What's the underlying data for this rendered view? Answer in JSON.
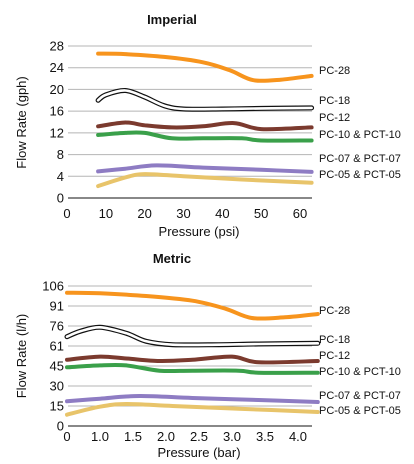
{
  "chart_data": [
    {
      "type": "line",
      "title": "Imperial",
      "xlabel": "Pressure (psi)",
      "ylabel": "Flow Rate (gph)",
      "xlim": [
        0,
        65
      ],
      "ylim": [
        0,
        28
      ],
      "xticks": [
        "0",
        "10",
        "20",
        "30",
        "40",
        "50",
        "60"
      ],
      "yticks": [
        "0",
        "4",
        "8",
        "12",
        "16",
        "20",
        "24",
        "28"
      ],
      "grid": "horizontal",
      "legend": "right",
      "series": [
        {
          "name": "PC-28",
          "color": "#f7941d",
          "style": "solid",
          "x": [
            8,
            15,
            25,
            35,
            42,
            48,
            55,
            63
          ],
          "y": [
            26.6,
            26.5,
            26.0,
            25.0,
            23.5,
            21.7,
            21.8,
            22.5
          ]
        },
        {
          "name": "PC-18",
          "color": "#111111",
          "style": "outline",
          "x": [
            8,
            10,
            15,
            20,
            25,
            30,
            40,
            50,
            63
          ],
          "y": [
            18.0,
            19.0,
            19.8,
            18.6,
            17.0,
            16.4,
            16.4,
            16.5,
            16.6
          ]
        },
        {
          "name": "PC-12",
          "color": "#7b3a2e",
          "style": "solid",
          "x": [
            8,
            15,
            20,
            27,
            35,
            43,
            50,
            63
          ],
          "y": [
            13.2,
            13.9,
            13.4,
            13.0,
            13.2,
            13.8,
            12.7,
            13.0
          ]
        },
        {
          "name": "PC-10 & PCT-10",
          "color": "#3aa04a",
          "style": "solid",
          "x": [
            8,
            15,
            20,
            27,
            35,
            45,
            50,
            63
          ],
          "y": [
            11.6,
            12.0,
            12.0,
            11.0,
            11.0,
            11.0,
            10.6,
            10.6
          ]
        },
        {
          "name": "PC-07 & PCT-07",
          "color": "#8e7cc3",
          "style": "solid",
          "x": [
            8,
            15,
            23,
            35,
            50,
            63
          ],
          "y": [
            4.9,
            5.4,
            6.0,
            5.6,
            5.2,
            4.8
          ]
        },
        {
          "name": "PC-05 & PCT-05",
          "color": "#e8c46a",
          "style": "solid",
          "x": [
            8,
            15,
            20,
            30,
            45,
            63
          ],
          "y": [
            2.2,
            3.8,
            4.4,
            4.0,
            3.4,
            2.8
          ]
        }
      ]
    },
    {
      "type": "line",
      "title": "Metric",
      "xlabel": "Pressure (bar)",
      "ylabel": "Flow Rate (l/h)",
      "xticks": [
        "0",
        "1.0",
        "1.5",
        "2.0",
        "2.5",
        "3.0",
        "3.5",
        "4.0"
      ],
      "yticks": [
        "0",
        "15",
        "30",
        "45",
        "61",
        "76",
        "91",
        "106"
      ],
      "grid": "horizontal",
      "legend": "right",
      "series": [
        {
          "name": "PC-28",
          "color": "#f7941d",
          "style": "solid",
          "x": [
            0.5,
            1.0,
            1.7,
            2.4,
            2.9,
            3.3,
            3.8,
            4.3
          ],
          "y": [
            101,
            100.5,
            98.5,
            95,
            89,
            82,
            82.5,
            85
          ]
        },
        {
          "name": "PC-18",
          "color": "#111111",
          "style": "outline",
          "x": [
            0.5,
            0.7,
            1.0,
            1.4,
            1.7,
            2.1,
            2.8,
            3.4,
            4.3
          ],
          "y": [
            68,
            72,
            75,
            70.5,
            64.5,
            62,
            62,
            62.5,
            63
          ]
        },
        {
          "name": "PC-12",
          "color": "#7b3a2e",
          "style": "solid",
          "x": [
            0.5,
            1.0,
            1.4,
            1.9,
            2.4,
            3.0,
            3.4,
            4.3
          ],
          "y": [
            50,
            52.5,
            51,
            49,
            50,
            52.5,
            48,
            49
          ]
        },
        {
          "name": "PC-10 & PCT-10",
          "color": "#3aa04a",
          "style": "solid",
          "x": [
            0.5,
            1.0,
            1.4,
            1.9,
            2.4,
            3.1,
            3.4,
            4.3
          ],
          "y": [
            44,
            45.5,
            45.5,
            41.5,
            41.5,
            41.5,
            40,
            40
          ]
        },
        {
          "name": "PC-07 & PCT-07",
          "color": "#8e7cc3",
          "style": "solid",
          "x": [
            0.5,
            1.0,
            1.6,
            2.4,
            3.4,
            4.3
          ],
          "y": [
            18.5,
            20.5,
            22.5,
            21,
            19.5,
            18
          ]
        },
        {
          "name": "PC-05 & PCT-05",
          "color": "#e8c46a",
          "style": "solid",
          "x": [
            0.5,
            1.0,
            1.4,
            2.1,
            3.1,
            4.3
          ],
          "y": [
            8.5,
            14.5,
            16.5,
            15,
            13,
            10.5
          ]
        }
      ]
    }
  ]
}
